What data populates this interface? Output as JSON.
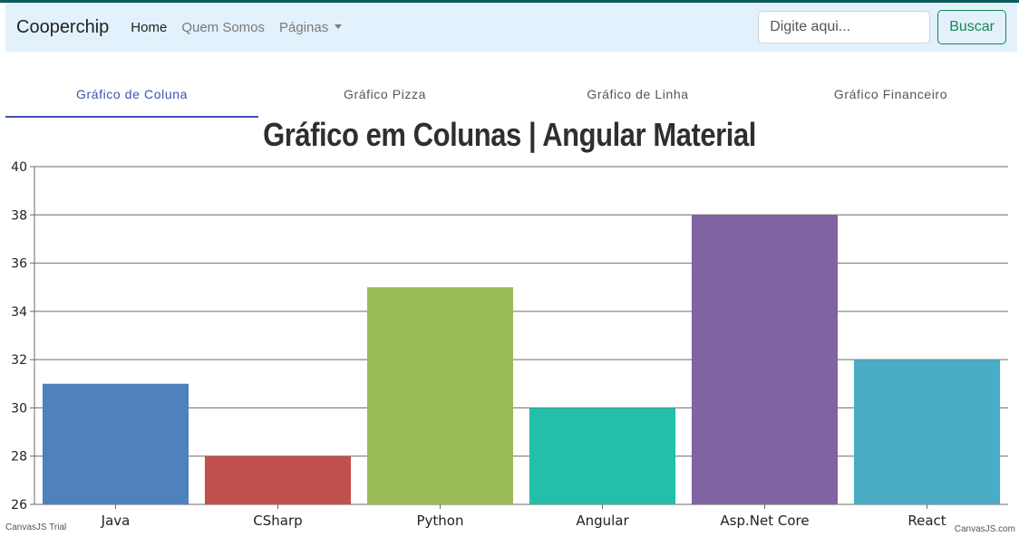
{
  "navbar": {
    "brand": "Cooperchip",
    "links": [
      {
        "label": "Home"
      },
      {
        "label": "Quem Somos"
      },
      {
        "label": "Páginas"
      }
    ],
    "search": {
      "placeholder": "Digite aqui...",
      "button_label": "Buscar"
    }
  },
  "tabs": [
    {
      "label": "Gráfico de Coluna"
    },
    {
      "label": "Gráfico Pizza"
    },
    {
      "label": "Gráfico de Linha"
    },
    {
      "label": "Gráfico Financeiro"
    }
  ],
  "credits": {
    "left": "CanvasJS Trial",
    "right": "CanvasJS.com"
  },
  "chart_data": {
    "type": "bar",
    "title": "Gráfico em Colunas | Angular Material",
    "categories": [
      "Java",
      "CSharp",
      "Python",
      "Angular",
      "Asp.Net Core",
      "React"
    ],
    "values": [
      31,
      28,
      35,
      30,
      38,
      32
    ],
    "colors": [
      "#4f81bc",
      "#c0504e",
      "#9bbb58",
      "#23bfaa",
      "#8064a1",
      "#4aacc5"
    ],
    "ylim": [
      26,
      40
    ],
    "yticks": [
      26,
      28,
      30,
      32,
      34,
      36,
      38,
      40
    ],
    "grid": true,
    "legend": "none"
  }
}
